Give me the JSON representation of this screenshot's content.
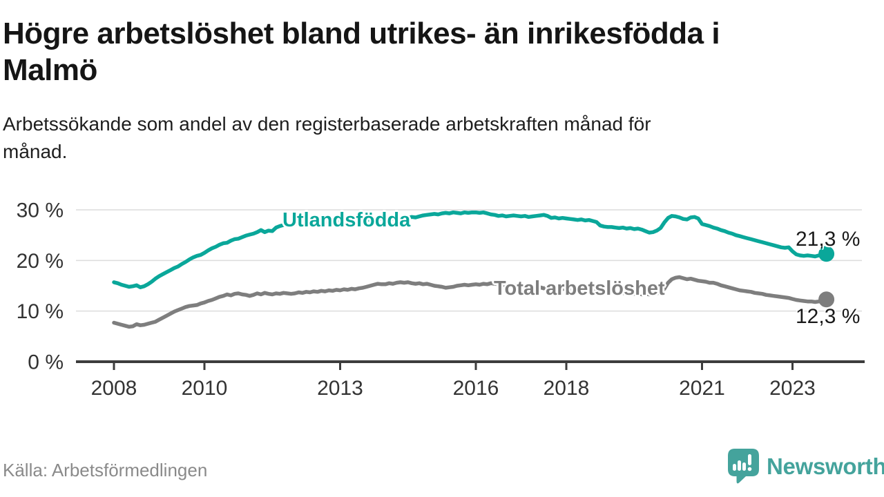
{
  "header": {
    "title_lines": [
      "Högre arbetslöshet bland utrikes- än inrikesfödda i",
      "Malmö"
    ],
    "subtitle_lines": [
      "Arbetssökande som andel av den registerbaserade arbetskraften månad för",
      "månad."
    ]
  },
  "footer": {
    "source": "Källa: Arbetsförmedlingen",
    "brand": "Newsworthy",
    "logo_icon": "speech-bubble-bar-chart"
  },
  "colors": {
    "utlandsfodda": "#0aa79a",
    "total": "#7e7e7e",
    "axis": "#3c3c3c",
    "grid": "#dcdcdc",
    "tick_text": "#333333",
    "annotation": "#1a1a1a",
    "brand": "#44a39c"
  },
  "chart_data": {
    "type": "line",
    "title": "Högre arbetslöshet bland utrikes- än inrikesfödda i Malmö",
    "subtitle": "Arbetssökande som andel av den registerbaserade arbetskraften månad för månad.",
    "frequency": "monthly",
    "x_start_year": 2008,
    "x_start_month": 1,
    "x_end_year": 2023,
    "x_end_month": 10,
    "ylim": [
      0,
      30
    ],
    "grid": true,
    "legend": "inline-labels",
    "y_ticks": [
      {
        "value": 0,
        "label": "0 %"
      },
      {
        "value": 10,
        "label": "10 %"
      },
      {
        "value": 20,
        "label": "20 %"
      },
      {
        "value": 30,
        "label": "30 %"
      }
    ],
    "x_ticks": [
      {
        "value": 2008,
        "label": "2008"
      },
      {
        "value": 2010,
        "label": "2010"
      },
      {
        "value": 2013,
        "label": "2013"
      },
      {
        "value": 2016,
        "label": "2016"
      },
      {
        "value": 2018,
        "label": "2018"
      },
      {
        "value": 2021,
        "label": "2021"
      },
      {
        "value": 2023,
        "label": "2023"
      }
    ],
    "series": [
      {
        "id": "utlandsfodda",
        "name": "Utlandsfödda",
        "color_key": "utlandsfodda",
        "end_value": 21.3,
        "end_label": "21,3 %",
        "values": [
          15.7,
          15.5,
          15.2,
          15.0,
          14.8,
          14.9,
          15.1,
          14.7,
          14.9,
          15.3,
          15.8,
          16.4,
          16.9,
          17.3,
          17.7,
          18.1,
          18.5,
          18.8,
          19.3,
          19.7,
          20.2,
          20.6,
          20.9,
          21.1,
          21.5,
          22.0,
          22.4,
          22.7,
          23.1,
          23.4,
          23.5,
          23.9,
          24.2,
          24.3,
          24.6,
          24.9,
          25.1,
          25.3,
          25.6,
          26.0,
          25.6,
          25.9,
          25.8,
          26.5,
          26.8,
          27.0,
          27.1,
          27.2,
          27.3,
          27.4,
          27.3,
          27.5,
          27.4,
          27.6,
          27.5,
          27.7,
          27.6,
          27.7,
          27.8,
          27.7,
          27.6,
          27.8,
          27.7,
          27.9,
          27.8,
          28.0,
          27.9,
          28.1,
          28.0,
          28.2,
          28.1,
          28.2,
          28.1,
          28.3,
          28.2,
          28.4,
          28.3,
          28.5,
          28.4,
          28.6,
          28.5,
          28.7,
          28.9,
          29.0,
          29.1,
          29.2,
          29.1,
          29.3,
          29.4,
          29.3,
          29.5,
          29.4,
          29.3,
          29.5,
          29.4,
          29.5,
          29.5,
          29.4,
          29.5,
          29.3,
          29.1,
          29.0,
          28.8,
          28.9,
          28.7,
          28.8,
          28.9,
          28.8,
          28.7,
          28.8,
          28.6,
          28.7,
          28.8,
          28.9,
          29.0,
          28.8,
          28.4,
          28.5,
          28.3,
          28.4,
          28.3,
          28.2,
          28.1,
          28.0,
          28.1,
          27.9,
          28.0,
          27.8,
          27.6,
          26.9,
          26.7,
          26.6,
          26.6,
          26.5,
          26.4,
          26.5,
          26.3,
          26.4,
          26.2,
          26.3,
          26.1,
          25.8,
          25.5,
          25.6,
          25.9,
          26.4,
          27.5,
          28.4,
          28.8,
          28.7,
          28.5,
          28.2,
          28.1,
          28.5,
          28.6,
          28.3,
          27.2,
          27.0,
          26.8,
          26.5,
          26.3,
          26.0,
          25.8,
          25.5,
          25.3,
          25.0,
          24.8,
          24.6,
          24.4,
          24.2,
          24.0,
          23.8,
          23.6,
          23.4,
          23.2,
          23.0,
          22.8,
          22.6,
          22.5,
          22.6,
          21.8,
          21.2,
          21.0,
          20.9,
          21.0,
          20.9,
          20.8,
          21.0,
          21.1,
          21.3
        ]
      },
      {
        "id": "total",
        "name": "Total arbetslöshet",
        "color_key": "total",
        "end_value": 12.3,
        "end_label": "12,3 %",
        "values": [
          7.7,
          7.5,
          7.3,
          7.1,
          6.9,
          7.0,
          7.4,
          7.2,
          7.3,
          7.5,
          7.7,
          7.9,
          8.3,
          8.7,
          9.1,
          9.5,
          9.9,
          10.2,
          10.5,
          10.8,
          11.0,
          11.1,
          11.2,
          11.5,
          11.7,
          12.0,
          12.2,
          12.5,
          12.8,
          13.0,
          13.3,
          13.1,
          13.4,
          13.5,
          13.3,
          13.2,
          13.0,
          13.2,
          13.5,
          13.3,
          13.6,
          13.4,
          13.3,
          13.5,
          13.4,
          13.6,
          13.5,
          13.4,
          13.5,
          13.7,
          13.6,
          13.8,
          13.7,
          13.9,
          13.8,
          14.0,
          13.9,
          14.1,
          14.0,
          14.2,
          14.1,
          14.3,
          14.2,
          14.4,
          14.3,
          14.5,
          14.6,
          14.8,
          15.0,
          15.2,
          15.4,
          15.3,
          15.3,
          15.5,
          15.4,
          15.6,
          15.7,
          15.6,
          15.7,
          15.5,
          15.4,
          15.5,
          15.3,
          15.4,
          15.2,
          15.0,
          14.9,
          14.8,
          14.6,
          14.7,
          14.8,
          15.0,
          15.1,
          15.2,
          15.1,
          15.2,
          15.3,
          15.2,
          15.4,
          15.3,
          15.5,
          15.4,
          15.3,
          15.2,
          15.1,
          15.0,
          15.1,
          15.0,
          14.9,
          14.8,
          14.7,
          14.8,
          14.6,
          14.7,
          14.5,
          14.6,
          14.4,
          14.5,
          14.3,
          14.4,
          14.3,
          14.2,
          14.1,
          14.2,
          14.0,
          14.1,
          13.9,
          14.0,
          13.8,
          13.9,
          13.7,
          13.8,
          13.7,
          13.6,
          13.5,
          13.6,
          13.4,
          13.5,
          13.4,
          13.5,
          13.3,
          13.4,
          13.3,
          13.4,
          13.5,
          13.7,
          14.4,
          15.6,
          16.3,
          16.6,
          16.7,
          16.5,
          16.3,
          16.4,
          16.2,
          16.0,
          15.9,
          15.8,
          15.6,
          15.6,
          15.4,
          15.1,
          14.9,
          14.7,
          14.5,
          14.3,
          14.1,
          14.0,
          13.9,
          13.8,
          13.6,
          13.5,
          13.4,
          13.2,
          13.1,
          13.0,
          12.9,
          12.8,
          12.7,
          12.6,
          12.4,
          12.2,
          12.1,
          12.0,
          11.9,
          11.9,
          11.8,
          11.9,
          12.1,
          12.3
        ]
      }
    ]
  }
}
